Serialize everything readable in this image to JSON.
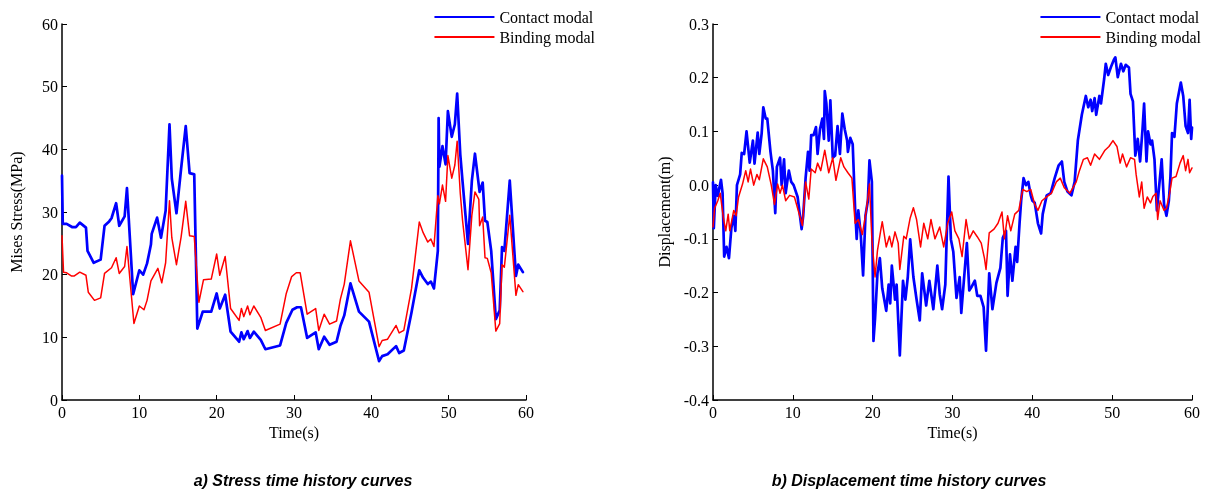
{
  "chart_data": [
    {
      "type": "line",
      "title": "a) Stress time history curves",
      "xlabel": "Time(s)",
      "ylabel": "Mises Stress(MPa)",
      "xlim": [
        0,
        60
      ],
      "xticks": [
        0,
        10,
        20,
        30,
        40,
        50,
        60
      ],
      "ylim": [
        0,
        60
      ],
      "yticks": [
        0,
        10,
        20,
        30,
        40,
        50,
        60
      ],
      "grid": false,
      "legend": "top right",
      "marker": "none",
      "line_style": "solid",
      "series": [
        {
          "name": "Contact modal",
          "color": "#0000ff",
          "x": [
            0,
            0.1,
            0.6,
            1.3,
            1.8,
            2.3,
            3.1,
            3.3,
            4.1,
            5,
            5.5,
            6.1,
            6.4,
            7,
            7.4,
            8.1,
            8.4,
            9.2,
            10,
            10.5,
            11,
            11.5,
            11.6,
            12.3,
            12.8,
            13.4,
            13.9,
            14.2,
            14.8,
            15.4,
            16,
            16.5,
            17.1,
            17.5,
            18.2,
            19.3,
            20,
            20.4,
            21.1,
            21.8,
            22.9,
            23.2,
            23.5,
            24,
            24.3,
            24.8,
            25.7,
            26.3,
            28.2,
            29,
            29.8,
            30.4,
            30.9,
            31.7,
            32.8,
            33.2,
            33.9,
            34.6,
            35.5,
            36,
            36.5,
            37.3,
            38.4,
            39.7,
            41,
            41.4,
            42.1,
            43.2,
            43.6,
            44.2,
            45.2,
            46.2,
            46.7,
            47.3,
            47.7,
            48.1,
            48.6,
            48.7,
            48.8,
            49.2,
            49.6,
            49.9,
            50.4,
            50.8,
            51.1,
            51.5,
            51.8,
            52.5,
            53,
            53.4,
            54,
            54.4,
            54.7,
            55,
            55.5,
            56.1,
            56.6,
            56.9,
            57.2,
            57.9,
            58.7,
            59,
            59.6
          ],
          "values": [
            35.8,
            28.1,
            28.1,
            27.6,
            27.6,
            28.3,
            27.5,
            23.8,
            21.9,
            22.4,
            27.8,
            28.5,
            29,
            31.4,
            27.8,
            29.3,
            33.8,
            16.9,
            20.7,
            20,
            21.8,
            24.8,
            26.5,
            29.1,
            25.9,
            30.2,
            44,
            35.3,
            29.8,
            36.9,
            43.7,
            36.2,
            36,
            11.4,
            14.1,
            14.1,
            17,
            14.6,
            16.8,
            10.9,
            9.3,
            10.8,
            9.7,
            11,
            9.9,
            10.9,
            9.6,
            8.1,
            8.7,
            12.3,
            14.4,
            14.8,
            14.8,
            9.9,
            10.8,
            8.1,
            10.1,
            8.8,
            9.3,
            11.8,
            13.5,
            18.6,
            14.1,
            12.5,
            6.2,
            7,
            7.3,
            8.6,
            7.5,
            7.9,
            14,
            20.7,
            19.5,
            18.5,
            18.9,
            17.8,
            23.8,
            45,
            37.2,
            40.5,
            37.6,
            46.1,
            42,
            44,
            48.9,
            39.2,
            34.8,
            24.9,
            35,
            39.3,
            33.2,
            34.7,
            28.6,
            28.4,
            23.8,
            12.9,
            14.3,
            24.4,
            23.8,
            35,
            19.8,
            21.6,
            20.4
          ]
        },
        {
          "name": "Binding modal",
          "color": "#ff0000",
          "x": [
            0,
            0.2,
            0.6,
            1.2,
            1.6,
            2.3,
            3.1,
            3.4,
            4.2,
            5,
            5.5,
            6.4,
            7,
            7.4,
            8.1,
            8.4,
            9.3,
            10,
            10.6,
            11,
            11.5,
            12.4,
            12.9,
            13.4,
            13.9,
            14.2,
            14.8,
            15.4,
            16,
            16.5,
            17.1,
            17.7,
            18.3,
            19.3,
            20,
            20.4,
            21.1,
            21.8,
            22.9,
            23.2,
            23.5,
            24,
            24.3,
            24.8,
            25.7,
            26.3,
            28.2,
            29,
            29.7,
            30.3,
            30.8,
            31.7,
            32.8,
            33.2,
            33.9,
            34.6,
            35.5,
            36,
            36.5,
            37.3,
            38.4,
            39.7,
            41,
            41.4,
            42.1,
            43.2,
            43.6,
            44.2,
            45.2,
            46.2,
            46.7,
            47.3,
            47.7,
            48.1,
            48.6,
            48.8,
            49.2,
            49.6,
            49.9,
            50.4,
            50.8,
            51.1,
            51.5,
            51.8,
            52.5,
            53,
            53.4,
            53.9,
            54,
            54.4,
            54.7,
            55,
            55.5,
            56.1,
            56.6,
            56.9,
            57.2,
            57.9,
            58.7,
            59,
            59.6
          ],
          "values": [
            26.2,
            20.4,
            20.3,
            19.8,
            19.8,
            20.4,
            19.9,
            17.2,
            15.9,
            16.3,
            20.2,
            21.1,
            22.7,
            20.2,
            21.3,
            24.5,
            12.2,
            15,
            14.4,
            15.9,
            19,
            21,
            18.7,
            21.9,
            31.8,
            25.9,
            21.6,
            26,
            31.7,
            26.2,
            26.1,
            15.6,
            19.2,
            19.3,
            23.3,
            19.9,
            22.9,
            14.6,
            12.7,
            14.6,
            13.3,
            15,
            13.6,
            15,
            13.2,
            11.1,
            12.1,
            17,
            19.7,
            20.3,
            20.3,
            13.7,
            14.6,
            11.1,
            13.7,
            12.1,
            12.6,
            16.1,
            18.5,
            25.4,
            19,
            17.2,
            8.5,
            9.5,
            9.7,
            11.9,
            10.7,
            11.1,
            17.8,
            28.4,
            26.7,
            25.2,
            25.7,
            24.5,
            32.6,
            31.3,
            34.3,
            31.7,
            39,
            35.4,
            37.5,
            41.3,
            33,
            28.6,
            20.8,
            29.5,
            33.2,
            32,
            27.8,
            29.2,
            22.7,
            22.6,
            20.3,
            11,
            12.2,
            21.6,
            21.2,
            29.5,
            16.7,
            18.4,
            17.3
          ]
        }
      ]
    },
    {
      "type": "line",
      "title": "b) Displacement time history curves",
      "xlabel": "Time(s)",
      "ylabel": "Displacement(m)",
      "xlim": [
        0,
        60
      ],
      "xticks": [
        0,
        10,
        20,
        30,
        40,
        50,
        60
      ],
      "ylim": [
        -0.4,
        0.3
      ],
      "yticks": [
        -0.4,
        -0.3,
        -0.2,
        -0.1,
        {
          "value": 0,
          "label": "0.0"
        },
        0.1,
        0.2,
        0.3
      ],
      "grid": false,
      "legend": "top right",
      "marker": "none",
      "line_style": "solid",
      "series": [
        {
          "name": "Contact modal",
          "color": "#0000ff",
          "x": [
            0,
            0.1,
            0.34,
            0.6,
            1,
            1.2,
            1.4,
            1.7,
            2,
            2.3,
            2.6,
            2.8,
            3,
            3.4,
            3.6,
            3.9,
            4.2,
            4.6,
            5,
            5.2,
            5.6,
            5.8,
            6.1,
            6.3,
            6.6,
            6.8,
            7.2,
            7.5,
            7.8,
            8,
            8.4,
            8.6,
            8.9,
            9.1,
            9.5,
            9.8,
            10.1,
            10.6,
            11.1,
            11.3,
            11.6,
            11.9,
            12.1,
            12.3,
            12.6,
            12.9,
            13.1,
            13.4,
            13.7,
            13.9,
            14,
            14.2,
            14.5,
            14.7,
            15,
            15.3,
            15.6,
            15.9,
            16.2,
            16.5,
            16.8,
            16.9,
            17.2,
            17.5,
            17.8,
            18,
            18.2,
            18.5,
            18.8,
            19.1,
            19.4,
            19.6,
            19.9,
            20.1,
            20.3,
            20.6,
            20.9,
            21.2,
            21.7,
            22,
            22.2,
            22.4,
            22.8,
            23,
            23.4,
            23.8,
            24.1,
            24.4,
            24.7,
            25.1,
            25.5,
            25.9,
            26.2,
            26.7,
            27.1,
            27.6,
            28.1,
            28.4,
            28.7,
            29.1,
            29.5,
            29.8,
            30.1,
            30.5,
            30.9,
            31.1,
            31.5,
            31.8,
            32.1,
            32.4,
            32.8,
            33.1,
            33.5,
            33.9,
            34.2,
            34.6,
            35,
            35.5,
            36,
            36.3,
            36.7,
            36.9,
            37.2,
            37.5,
            37.9,
            38.1,
            38.4,
            38.6,
            38.9,
            39.2,
            39.5,
            39.8,
            40,
            40.3,
            40.7,
            41.1,
            41.3,
            41.8,
            42.3,
            42.8,
            43.3,
            43.7,
            44,
            44.4,
            44.9,
            45.3,
            45.7,
            46.2,
            46.7,
            47,
            47.3,
            47.5,
            47.8,
            48,
            48.4,
            48.6,
            49,
            49.2,
            49.5,
            49.9,
            50.2,
            50.4,
            50.7,
            51.1,
            51.4,
            51.7,
            52.1,
            52.3,
            52.6,
            52.9,
            53.2,
            53.5,
            53.8,
            54,
            54.3,
            54.5,
            54.8,
            55,
            55.3,
            55.6,
            55.9,
            56.2,
            56.5,
            56.8,
            57.1,
            57.3,
            57.5,
            57.8,
            58.1,
            58.6,
            58.9,
            59.2,
            59.5,
            59.7,
            59.9,
            60
          ],
          "values": [
            0.005,
            -0.08,
            0,
            -0.02,
            0.01,
            -0.015,
            -0.133,
            -0.115,
            -0.136,
            -0.08,
            -0.057,
            -0.085,
            0,
            0.02,
            0.06,
            0.058,
            0.1,
            0.042,
            0.083,
            0.04,
            0.098,
            0.058,
            0.097,
            0.145,
            0.124,
            0.124,
            0.062,
            0.027,
            -0.052,
            0.034,
            0.051,
            0,
            0.048,
            -0.015,
            0.027,
            0.006,
            0,
            -0.022,
            -0.082,
            -0.057,
            0.013,
            0.062,
            0.027,
            0.093,
            0.093,
            0.108,
            0.058,
            0.104,
            0.124,
            0.086,
            0.175,
            0.152,
            0.083,
            0.158,
            0.051,
            0.055,
            0.11,
            0.058,
            0.133,
            0.104,
            0.083,
            0.062,
            0.088,
            0.076,
            -0.043,
            -0.1,
            -0.047,
            -0.09,
            -0.168,
            -0.057,
            -0.029,
            0.046,
            0.006,
            -0.29,
            -0.248,
            -0.164,
            -0.136,
            -0.192,
            -0.234,
            -0.185,
            -0.22,
            -0.15,
            -0.213,
            -0.185,
            -0.317,
            -0.178,
            -0.213,
            -0.171,
            -0.101,
            -0.171,
            -0.213,
            -0.252,
            -0.164,
            -0.224,
            -0.178,
            -0.231,
            -0.15,
            -0.203,
            -0.231,
            -0.185,
            0.016,
            -0.101,
            -0.124,
            -0.21,
            -0.171,
            -0.238,
            -0.164,
            -0.108,
            -0.196,
            -0.189,
            -0.178,
            -0.206,
            -0.206,
            -0.227,
            -0.308,
            -0.164,
            -0.231,
            -0.182,
            -0.154,
            -0.098,
            -0.085,
            -0.206,
            -0.129,
            -0.178,
            -0.115,
            -0.143,
            -0.071,
            -0.029,
            0.013,
            0,
            0.006,
            -0.019,
            -0.029,
            -0.033,
            -0.071,
            -0.09,
            -0.054,
            -0.019,
            -0.015,
            0.013,
            0.037,
            0.044,
            0.006,
            -0.012,
            -0.019,
            0.006,
            0.083,
            0.131,
            0.166,
            0.145,
            0.159,
            0.138,
            0.162,
            0.131,
            0.166,
            0.152,
            0.198,
            0.226,
            0.205,
            0.222,
            0.233,
            0.238,
            0.201,
            0.226,
            0.212,
            0.224,
            0.219,
            0.17,
            0.156,
            0.055,
            0.086,
            0.044,
            0.104,
            0.152,
            0.044,
            0.1,
            0.076,
            0.083,
            0.048,
            -0.047,
            0,
            0.048,
            -0.036,
            -0.057,
            -0.029,
            0.016,
            0.097,
            0.09,
            0.152,
            0.191,
            0.166,
            0.11,
            0.097,
            0.159,
            0.086,
            0.107
          ]
        },
        {
          "name": "Binding modal",
          "color": "#ff0000",
          "x": [
            0,
            0.2,
            0.6,
            0.9,
            1.3,
            1.6,
            1.9,
            2.1,
            2.6,
            2.9,
            3.2,
            3.7,
            4.1,
            4.4,
            4.7,
            5.1,
            5.5,
            5.8,
            6.3,
            6.8,
            7.3,
            7.7,
            8.1,
            8.4,
            8.7,
            9.1,
            9.6,
            10.2,
            10.8,
            11.2,
            11.6,
            12,
            12.3,
            12.8,
            13.1,
            13.5,
            14,
            14.5,
            15,
            15.4,
            16,
            16.4,
            16.9,
            17.4,
            17.8,
            18.2,
            18.7,
            19.2,
            19.6,
            19.9,
            20.3,
            20.6,
            21,
            21.2,
            21.7,
            22.1,
            22.4,
            22.8,
            23.2,
            23.4,
            23.9,
            24.2,
            24.7,
            25.1,
            25.5,
            26,
            26.4,
            26.9,
            27.3,
            27.8,
            28.4,
            28.9,
            29.4,
            29.9,
            30.3,
            30.8,
            31.2,
            31.7,
            32.1,
            32.6,
            33.1,
            33.6,
            34,
            34.2,
            34.6,
            35.2,
            35.7,
            36.2,
            36.5,
            36.9,
            37.3,
            37.8,
            38.3,
            38.8,
            39.3,
            39.8,
            40.3,
            40.7,
            41.2,
            41.8,
            42.4,
            43,
            43.5,
            44,
            44.7,
            45.5,
            45.9,
            46.4,
            46.9,
            47.3,
            47.8,
            48.4,
            49.1,
            49.6,
            50.1,
            50.6,
            51,
            51.3,
            51.8,
            52.3,
            52.8,
            53,
            53.4,
            53.7,
            54,
            54.4,
            54.8,
            55.1,
            55.5,
            55.7,
            56,
            56.5,
            56.8,
            57.2,
            57.5,
            58,
            58.5,
            58.9,
            59.2,
            59.5,
            59.7,
            60
          ],
          "values": [
            -0.078,
            -0.043,
            -0.029,
            -0.015,
            -0.061,
            -0.085,
            -0.054,
            -0.085,
            -0.047,
            -0.057,
            -0.022,
            0.002,
            0.027,
            0.006,
            0.03,
            0,
            0.02,
            0.01,
            0.049,
            0.034,
            0,
            -0.036,
            0.002,
            -0.015,
            0,
            -0.029,
            -0.019,
            -0.022,
            -0.054,
            -0.075,
            0.006,
            -0.026,
            0.03,
            0.023,
            0.041,
            0.027,
            0.065,
            0.023,
            0.051,
            0.009,
            0.051,
            0.034,
            0.023,
            0.013,
            -0.071,
            -0.064,
            -0.092,
            -0.047,
            0.002,
            -0.101,
            -0.171,
            -0.122,
            -0.085,
            -0.068,
            -0.115,
            -0.095,
            -0.115,
            -0.087,
            -0.108,
            -0.157,
            -0.095,
            -0.1,
            -0.061,
            -0.042,
            -0.064,
            -0.115,
            -0.071,
            -0.1,
            -0.064,
            -0.1,
            -0.078,
            -0.115,
            -0.071,
            -0.05,
            -0.085,
            -0.1,
            -0.133,
            -0.064,
            -0.1,
            -0.085,
            -0.096,
            -0.108,
            -0.136,
            -0.157,
            -0.089,
            -0.082,
            -0.071,
            -0.05,
            -0.1,
            -0.057,
            -0.085,
            -0.054,
            -0.047,
            -0.008,
            -0.012,
            -0.008,
            -0.036,
            -0.047,
            -0.029,
            -0.022,
            -0.015,
            0.006,
            0.013,
            -0.005,
            -0.015,
            0.006,
            0.027,
            0.048,
            0.051,
            0.037,
            0.058,
            0.048,
            0.065,
            0.072,
            0.083,
            0.072,
            0.041,
            0.058,
            0.034,
            0.051,
            0.048,
            0.02,
            -0.022,
            0.006,
            -0.043,
            -0.022,
            -0.033,
            -0.021,
            -0.015,
            -0.064,
            -0.029,
            -0.047,
            -0.043,
            -0.015,
            0.013,
            0.016,
            0.041,
            0.055,
            0.027,
            0.048,
            0.023,
            0.032
          ]
        }
      ]
    }
  ]
}
